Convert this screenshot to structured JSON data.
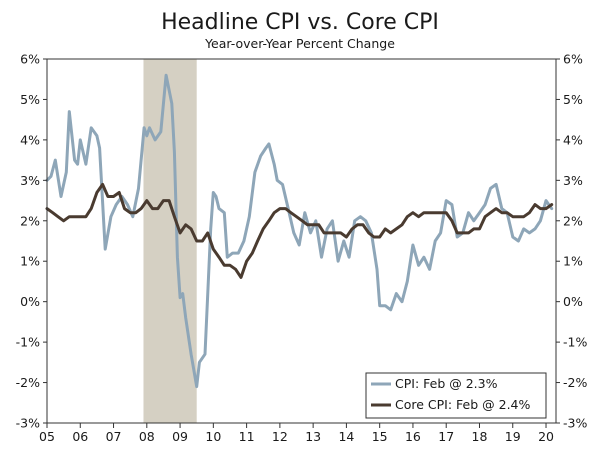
{
  "chart_data": {
    "type": "line",
    "title": "Headline CPI vs. Core CPI",
    "subtitle": "Year-over-Year Percent Change",
    "xlabel": "",
    "ylabel": "",
    "ylim": [
      -3,
      6
    ],
    "xlim": [
      2005.0,
      2020.3
    ],
    "y_ticks": [
      -3,
      -2,
      -1,
      0,
      1,
      2,
      3,
      4,
      5,
      6
    ],
    "y_tick_labels_left": [
      "-3%",
      "-2%",
      "-1%",
      "0%",
      "1%",
      "2%",
      "3%",
      "4%",
      "5%",
      "6%"
    ],
    "y_tick_labels_right": [
      "-3%",
      "-2%",
      "-1%",
      "0%",
      "1%",
      "2%",
      "3%",
      "4%",
      "5%",
      "6%"
    ],
    "x_tick_labels": [
      "05",
      "06",
      "07",
      "08",
      "09",
      "10",
      "11",
      "12",
      "13",
      "14",
      "15",
      "16",
      "17",
      "18",
      "19",
      "20"
    ],
    "recession_band": {
      "start": 2007.9,
      "end": 2009.5,
      "color": "#d5d0c3"
    },
    "colors": {
      "cpi": "#8ea6b8",
      "core": "#4a3b30",
      "axis": "#333333"
    },
    "series": [
      {
        "name": "CPI",
        "legend_label": "CPI: Feb @ 2.3%",
        "points": [
          [
            2005.0,
            3.0
          ],
          [
            2005.12,
            3.1
          ],
          [
            2005.25,
            3.5
          ],
          [
            2005.42,
            2.6
          ],
          [
            2005.58,
            3.2
          ],
          [
            2005.67,
            4.7
          ],
          [
            2005.83,
            3.5
          ],
          [
            2005.92,
            3.4
          ],
          [
            2006.0,
            4.0
          ],
          [
            2006.17,
            3.4
          ],
          [
            2006.33,
            4.3
          ],
          [
            2006.5,
            4.1
          ],
          [
            2006.58,
            3.8
          ],
          [
            2006.75,
            1.3
          ],
          [
            2006.92,
            2.1
          ],
          [
            2007.08,
            2.4
          ],
          [
            2007.25,
            2.6
          ],
          [
            2007.42,
            2.4
          ],
          [
            2007.58,
            2.1
          ],
          [
            2007.75,
            2.8
          ],
          [
            2007.92,
            4.3
          ],
          [
            2008.0,
            4.1
          ],
          [
            2008.08,
            4.3
          ],
          [
            2008.25,
            4.0
          ],
          [
            2008.42,
            4.2
          ],
          [
            2008.58,
            5.6
          ],
          [
            2008.75,
            4.9
          ],
          [
            2008.83,
            3.7
          ],
          [
            2008.92,
            1.1
          ],
          [
            2009.0,
            0.1
          ],
          [
            2009.08,
            0.2
          ],
          [
            2009.17,
            -0.4
          ],
          [
            2009.33,
            -1.3
          ],
          [
            2009.5,
            -2.1
          ],
          [
            2009.58,
            -1.5
          ],
          [
            2009.75,
            -1.3
          ],
          [
            2009.92,
            1.8
          ],
          [
            2010.0,
            2.7
          ],
          [
            2010.08,
            2.6
          ],
          [
            2010.17,
            2.3
          ],
          [
            2010.33,
            2.2
          ],
          [
            2010.42,
            1.1
          ],
          [
            2010.58,
            1.2
          ],
          [
            2010.75,
            1.2
          ],
          [
            2010.92,
            1.5
          ],
          [
            2011.08,
            2.1
          ],
          [
            2011.25,
            3.2
          ],
          [
            2011.42,
            3.6
          ],
          [
            2011.58,
            3.8
          ],
          [
            2011.67,
            3.9
          ],
          [
            2011.83,
            3.4
          ],
          [
            2011.92,
            3.0
          ],
          [
            2012.08,
            2.9
          ],
          [
            2012.25,
            2.3
          ],
          [
            2012.42,
            1.7
          ],
          [
            2012.58,
            1.4
          ],
          [
            2012.75,
            2.2
          ],
          [
            2012.92,
            1.7
          ],
          [
            2013.08,
            2.0
          ],
          [
            2013.25,
            1.1
          ],
          [
            2013.42,
            1.8
          ],
          [
            2013.58,
            2.0
          ],
          [
            2013.75,
            1.0
          ],
          [
            2013.92,
            1.5
          ],
          [
            2014.08,
            1.1
          ],
          [
            2014.25,
            2.0
          ],
          [
            2014.42,
            2.1
          ],
          [
            2014.58,
            2.0
          ],
          [
            2014.75,
            1.7
          ],
          [
            2014.92,
            0.8
          ],
          [
            2015.0,
            -0.1
          ],
          [
            2015.17,
            -0.1
          ],
          [
            2015.33,
            -0.2
          ],
          [
            2015.5,
            0.2
          ],
          [
            2015.67,
            0.0
          ],
          [
            2015.83,
            0.5
          ],
          [
            2016.0,
            1.4
          ],
          [
            2016.17,
            0.9
          ],
          [
            2016.33,
            1.1
          ],
          [
            2016.5,
            0.8
          ],
          [
            2016.67,
            1.5
          ],
          [
            2016.83,
            1.7
          ],
          [
            2017.0,
            2.5
          ],
          [
            2017.17,
            2.4
          ],
          [
            2017.33,
            1.6
          ],
          [
            2017.5,
            1.7
          ],
          [
            2017.67,
            2.2
          ],
          [
            2017.83,
            2.0
          ],
          [
            2018.0,
            2.2
          ],
          [
            2018.17,
            2.4
          ],
          [
            2018.33,
            2.8
          ],
          [
            2018.5,
            2.9
          ],
          [
            2018.67,
            2.3
          ],
          [
            2018.83,
            2.2
          ],
          [
            2019.0,
            1.6
          ],
          [
            2019.17,
            1.5
          ],
          [
            2019.33,
            1.8
          ],
          [
            2019.5,
            1.7
          ],
          [
            2019.67,
            1.8
          ],
          [
            2019.83,
            2.0
          ],
          [
            2020.0,
            2.5
          ],
          [
            2020.17,
            2.3
          ]
        ]
      },
      {
        "name": "Core CPI",
        "legend_label": "Core CPI: Feb @ 2.4%",
        "points": [
          [
            2005.0,
            2.3
          ],
          [
            2005.17,
            2.2
          ],
          [
            2005.33,
            2.1
          ],
          [
            2005.5,
            2.0
          ],
          [
            2005.67,
            2.1
          ],
          [
            2005.83,
            2.1
          ],
          [
            2006.0,
            2.1
          ],
          [
            2006.17,
            2.1
          ],
          [
            2006.33,
            2.3
          ],
          [
            2006.5,
            2.7
          ],
          [
            2006.67,
            2.9
          ],
          [
            2006.83,
            2.6
          ],
          [
            2007.0,
            2.6
          ],
          [
            2007.17,
            2.7
          ],
          [
            2007.33,
            2.3
          ],
          [
            2007.5,
            2.2
          ],
          [
            2007.67,
            2.2
          ],
          [
            2007.83,
            2.3
          ],
          [
            2008.0,
            2.5
          ],
          [
            2008.17,
            2.3
          ],
          [
            2008.33,
            2.3
          ],
          [
            2008.5,
            2.5
          ],
          [
            2008.67,
            2.5
          ],
          [
            2008.83,
            2.1
          ],
          [
            2009.0,
            1.7
          ],
          [
            2009.17,
            1.9
          ],
          [
            2009.33,
            1.8
          ],
          [
            2009.5,
            1.5
          ],
          [
            2009.67,
            1.5
          ],
          [
            2009.83,
            1.7
          ],
          [
            2010.0,
            1.3
          ],
          [
            2010.17,
            1.1
          ],
          [
            2010.33,
            0.9
          ],
          [
            2010.5,
            0.9
          ],
          [
            2010.67,
            0.8
          ],
          [
            2010.83,
            0.6
          ],
          [
            2011.0,
            1.0
          ],
          [
            2011.17,
            1.2
          ],
          [
            2011.33,
            1.5
          ],
          [
            2011.5,
            1.8
          ],
          [
            2011.67,
            2.0
          ],
          [
            2011.83,
            2.2
          ],
          [
            2012.0,
            2.3
          ],
          [
            2012.17,
            2.3
          ],
          [
            2012.33,
            2.2
          ],
          [
            2012.5,
            2.1
          ],
          [
            2012.67,
            2.0
          ],
          [
            2012.83,
            1.9
          ],
          [
            2013.0,
            1.9
          ],
          [
            2013.17,
            1.9
          ],
          [
            2013.33,
            1.7
          ],
          [
            2013.5,
            1.7
          ],
          [
            2013.67,
            1.7
          ],
          [
            2013.83,
            1.7
          ],
          [
            2014.0,
            1.6
          ],
          [
            2014.17,
            1.8
          ],
          [
            2014.33,
            1.9
          ],
          [
            2014.5,
            1.9
          ],
          [
            2014.67,
            1.7
          ],
          [
            2014.83,
            1.6
          ],
          [
            2015.0,
            1.6
          ],
          [
            2015.17,
            1.8
          ],
          [
            2015.33,
            1.7
          ],
          [
            2015.5,
            1.8
          ],
          [
            2015.67,
            1.9
          ],
          [
            2015.83,
            2.1
          ],
          [
            2016.0,
            2.2
          ],
          [
            2016.17,
            2.1
          ],
          [
            2016.33,
            2.2
          ],
          [
            2016.5,
            2.2
          ],
          [
            2016.67,
            2.2
          ],
          [
            2016.83,
            2.2
          ],
          [
            2017.0,
            2.2
          ],
          [
            2017.17,
            2.0
          ],
          [
            2017.33,
            1.7
          ],
          [
            2017.5,
            1.7
          ],
          [
            2017.67,
            1.7
          ],
          [
            2017.83,
            1.8
          ],
          [
            2018.0,
            1.8
          ],
          [
            2018.17,
            2.1
          ],
          [
            2018.33,
            2.2
          ],
          [
            2018.5,
            2.3
          ],
          [
            2018.67,
            2.2
          ],
          [
            2018.83,
            2.2
          ],
          [
            2019.0,
            2.1
          ],
          [
            2019.17,
            2.1
          ],
          [
            2019.33,
            2.1
          ],
          [
            2019.5,
            2.2
          ],
          [
            2019.67,
            2.4
          ],
          [
            2019.83,
            2.3
          ],
          [
            2020.0,
            2.3
          ],
          [
            2020.17,
            2.4
          ]
        ]
      }
    ],
    "legend_position": "bottom-right"
  }
}
